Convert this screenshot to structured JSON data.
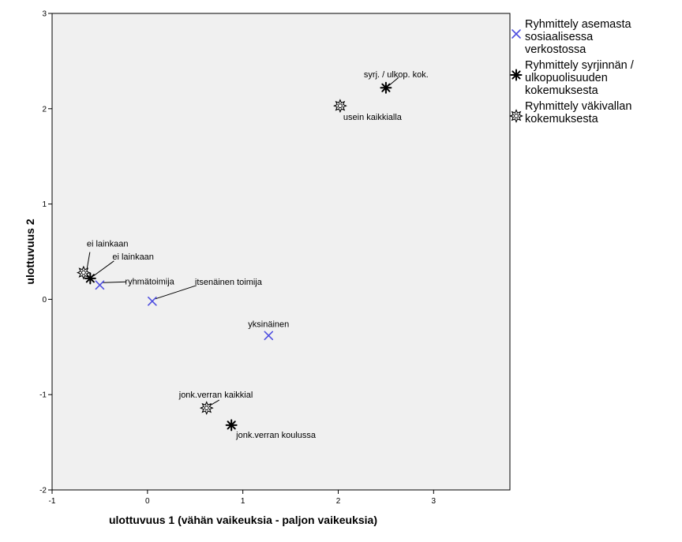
{
  "chart_data": {
    "type": "scatter",
    "title": "",
    "xlabel": "ulottuvuus 1 (vähän vaikeuksia - paljon vaikeuksia)",
    "ylabel": "ulottuvuus 2",
    "xlim": [
      -1,
      3.8
    ],
    "ylim": [
      -2,
      3
    ],
    "xticks": [
      "-1",
      "0",
      "1",
      "2",
      "3"
    ],
    "yticks": [
      "-2",
      "-1",
      "0",
      "1",
      "2",
      "3"
    ],
    "grid": false,
    "legend_position": "right",
    "series": [
      {
        "name": "Ryhmittely asemasta sosiaalisessa verkostossa",
        "marker": "x",
        "color": "#4f4fe0",
        "points": [
          {
            "x": -0.5,
            "y": 0.15,
            "label": "ryhmätoimija"
          },
          {
            "x": 0.05,
            "y": -0.02,
            "label": "itsenäinen toimija"
          },
          {
            "x": 1.27,
            "y": -0.38,
            "label": "yksinäinen"
          }
        ]
      },
      {
        "name": "Ryhmittely syrjinnän / ulkopuolisuuden kokemuksesta",
        "marker": "asterisk",
        "color": "#000000",
        "points": [
          {
            "x": 2.5,
            "y": 2.22,
            "label": "syrj. / ulkop. kok."
          },
          {
            "x": -0.6,
            "y": 0.22,
            "label": "ei lainkaan"
          },
          {
            "x": 0.88,
            "y": -1.32,
            "label": "jonk.verran koulussa"
          }
        ]
      },
      {
        "name": "Ryhmittely väkivallan kokemuksesta",
        "marker": "burst",
        "color": "#000000",
        "points": [
          {
            "x": 2.02,
            "y": 2.03,
            "label": "usein kaikkialla"
          },
          {
            "x": -0.67,
            "y": 0.28,
            "label": "ei lainkaan"
          },
          {
            "x": 0.62,
            "y": -1.14,
            "label": "jonk.verran kaikkial"
          }
        ]
      }
    ],
    "legend": [
      {
        "lines": [
          "Ryhmittely asemasta",
          "sosiaalisessa",
          "verkostossa"
        ]
      },
      {
        "lines": [
          "Ryhmittely syrjinnän /",
          "ulkopuolisuuden",
          "kokemuksesta"
        ]
      },
      {
        "lines": [
          "Ryhmittely väkivallan",
          "kokemuksesta"
        ]
      }
    ]
  }
}
